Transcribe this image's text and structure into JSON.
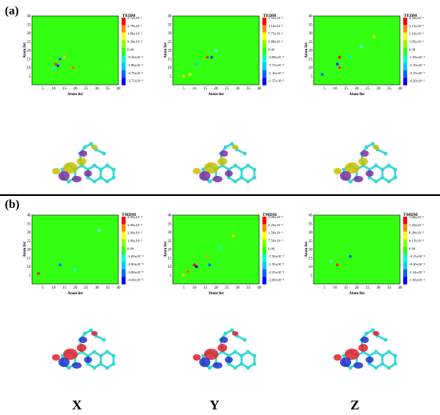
{
  "figure": {
    "panels": [
      "(a)",
      "(b)"
    ],
    "axis_names": [
      "X",
      "Y",
      "Z"
    ]
  },
  "heatmaps": [
    {
      "row": "a",
      "col": 0,
      "title": "TEDM",
      "xlabel": "Atom list",
      "ylabel": "Atom list",
      "ticks": [
        "3.72x10⁻¹",
        "2.79x10⁻¹",
        "1.86x10⁻¹",
        "9.30x10⁻²",
        "0.00",
        "-9.30x10⁻²",
        "-1.86x10⁻¹",
        "-2.79x10⁻¹",
        "-3.72x10⁻¹"
      ],
      "spots": [
        [
          11,
          12,
          "#ff3300"
        ],
        [
          12,
          11,
          "#0044ff"
        ],
        [
          10,
          10,
          "#00ffff"
        ],
        [
          15,
          16,
          "#ffcc00"
        ],
        [
          19,
          10,
          "#ff6600"
        ],
        [
          13,
          15,
          "#0066ff"
        ]
      ]
    },
    {
      "row": "a",
      "col": 1,
      "title": "TEDM",
      "xlabel": "Atom list",
      "ylabel": "Atom list",
      "ticks": [
        "1.55x10⁻¹",
        "1.16x10⁻¹",
        "7.75x10⁻²",
        "3.88x10⁻²",
        "0.00",
        "-3.88x10⁻²",
        "-7.75x10⁻²",
        "-1.16x10⁻¹",
        "-1.55x10⁻¹"
      ],
      "spots": [
        [
          16,
          16,
          "#ff3300"
        ],
        [
          18,
          16,
          "#0044ff"
        ],
        [
          11,
          12,
          "#00ccff"
        ],
        [
          5,
          5,
          "#ffcc00"
        ],
        [
          20,
          20,
          "#66ffff"
        ],
        [
          8,
          6,
          "#ffff00"
        ]
      ]
    },
    {
      "row": "a",
      "col": 2,
      "title": "TEDM",
      "xlabel": "Atom list",
      "ylabel": "Atom list",
      "ticks": [
        "4.20x10⁻¹",
        "3.15x10⁻¹",
        "2.10x10⁻¹",
        "1.05x10⁻¹",
        "0.00",
        "-1.05x10⁻¹",
        "-2.10x10⁻¹",
        "-3.15x10⁻¹",
        "-4.20x10⁻¹"
      ],
      "spots": [
        [
          12,
          16,
          "#ff0000"
        ],
        [
          11,
          12,
          "#0033ff"
        ],
        [
          12,
          10,
          "#ff3300"
        ],
        [
          4,
          6,
          "#0066ff"
        ],
        [
          17,
          16,
          "#00ffff"
        ],
        [
          22,
          22,
          "#66ffff"
        ],
        [
          28,
          28,
          "#ffff00"
        ]
      ]
    },
    {
      "row": "b",
      "col": 0,
      "title": "TMDM",
      "xlabel": "Atom list",
      "ylabel": "Atom list",
      "ticks": [
        "4.00x10⁻²",
        "3.00x10⁻²",
        "2.00x10⁻²",
        "1.00x10⁻²",
        "0.00",
        "-1.00x10⁻²",
        "-2.00x10⁻²",
        "-3.00x10⁻²",
        "-4.00x10⁻²"
      ],
      "spots": [
        [
          3,
          6,
          "#ff2200"
        ],
        [
          13,
          11,
          "#0066ff"
        ],
        [
          20,
          8,
          "#00ffff"
        ],
        [
          31,
          31,
          "#66ffff"
        ]
      ]
    },
    {
      "row": "b",
      "col": 1,
      "title": "TMDM",
      "xlabel": "Atom list",
      "ylabel": "Atom list",
      "ticks": [
        "3.00x10⁻²",
        "2.25x10⁻²",
        "1.50x10⁻²",
        "7.50x10⁻³",
        "0.00",
        "-7.50x10⁻³",
        "-1.50x10⁻²",
        "-2.25x10⁻²",
        "-3.00x10⁻²"
      ],
      "spots": [
        [
          10,
          11,
          "#ff0000"
        ],
        [
          11,
          10,
          "#0000ff"
        ],
        [
          16,
          16,
          "#ff9900"
        ],
        [
          5,
          5,
          "#ffcc00"
        ],
        [
          17,
          11,
          "#0066ff"
        ],
        [
          22,
          21,
          "#00ffff"
        ],
        [
          7,
          7,
          "#ff6600"
        ],
        [
          28,
          28,
          "#ffff00"
        ]
      ]
    },
    {
      "row": "b",
      "col": 2,
      "title": "TMDM",
      "xlabel": "Atom list",
      "ylabel": "Atom list",
      "ticks": [
        "1.66x10⁻¹",
        "1.25x10⁻¹",
        "8.30x10⁻²",
        "4.15x10⁻²",
        "0.00",
        "-4.15x10⁻²",
        "-8.30x10⁻²",
        "-1.24x10⁻¹",
        "-1.66x10⁻¹"
      ],
      "spots": [
        [
          11,
          11,
          "#ff3300"
        ],
        [
          17,
          16,
          "#0066ff"
        ],
        [
          8,
          13,
          "#66ffff"
        ]
      ]
    }
  ],
  "molecule_lobes": [
    [
      "#c8c000",
      "#7a2fa0"
    ],
    [
      "#c8c000",
      "#7a2fa0"
    ],
    [
      "#c8c000",
      "#7a2fa0"
    ],
    [
      "#e0202a",
      "#2030c8"
    ],
    [
      "#e0202a",
      "#2030c8"
    ],
    [
      "#e0202a",
      "#2030c8"
    ]
  ],
  "colors": {
    "map_background": "#33ff11",
    "colorbar": [
      "#ff0000",
      "#ff8800",
      "#ffff00",
      "#88ff00",
      "#33ff11",
      "#00ffcc",
      "#00ccff",
      "#0066ff",
      "#0000ff"
    ],
    "molecule_carbon": "#37d6d6"
  }
}
